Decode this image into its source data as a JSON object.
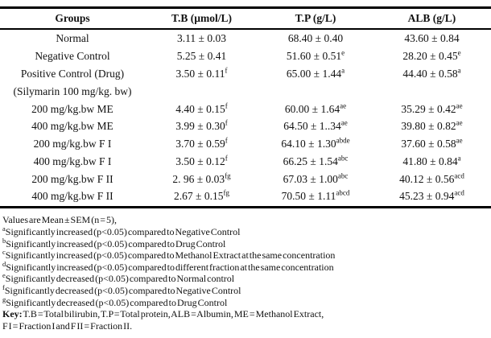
{
  "table": {
    "columns": [
      "Groups",
      "T.B (µmol/L)",
      "T.P (g/L)",
      "ALB (g/L)"
    ],
    "rows": [
      {
        "group": "Normal",
        "tb": "3.11 ± 0.03",
        "tb_sup": "",
        "tp": "68.40 ± 0.40",
        "tp_sup": "",
        "alb": "43.60 ± 0.84",
        "alb_sup": ""
      },
      {
        "group": "Negative Control",
        "tb": "5.25 ± 0.41",
        "tb_sup": "",
        "tp": "51.60 ± 0.51",
        "tp_sup": "e",
        "alb": "28.20 ± 0.45",
        "alb_sup": "e"
      },
      {
        "group": "Positive Control (Drug)",
        "tb": "3.50 ± 0.11",
        "tb_sup": "f",
        "tp": "65.00 ± 1.44",
        "tp_sup": "a",
        "alb": "44.40 ± 0.58",
        "alb_sup": "a"
      },
      {
        "group": "(Silymarin 100 mg/kg. bw)",
        "tb": "",
        "tb_sup": "",
        "tp": "",
        "tp_sup": "",
        "alb": "",
        "alb_sup": ""
      },
      {
        "group": "200 mg/kg.bw ME",
        "tb": "4.40 ± 0.15",
        "tb_sup": "f",
        "tp": "60.00 ± 1.64",
        "tp_sup": "ae",
        "alb": "35.29 ± 0.42",
        "alb_sup": "ae"
      },
      {
        "group": "400 mg/kg.bw ME",
        "tb": "3.99 ± 0.30",
        "tb_sup": "f",
        "tp": "64.50 ± 1..34",
        "tp_sup": "ae",
        "alb": "39.80 ± 0.82",
        "alb_sup": "ae"
      },
      {
        "group": "200 mg/kg.bw F I",
        "tb": "3.70 ± 0.59",
        "tb_sup": "f",
        "tp": "64.10 ± 1.30",
        "tp_sup": "abde",
        "alb": "37.60 ± 0.58",
        "alb_sup": "ae"
      },
      {
        "group": "400 mg/kg.bw F I",
        "tb": "3.50 ± 0.12",
        "tb_sup": "f",
        "tp": "66.25 ± 1.54",
        "tp_sup": "abc",
        "alb": "41.80 ± 0.84",
        "alb_sup": "a"
      },
      {
        "group": "200 mg/kg.bw F II",
        "tb": "2. 96 ± 0.03",
        "tb_sup": "fg",
        "tp": "67.03 ± 1.00",
        "tp_sup": "abc",
        "alb": "40.12 ± 0.56",
        "alb_sup": "acd"
      },
      {
        "group": "400 mg/kg.bw F II",
        "tb": "2.67 ± 0.15",
        "tb_sup": "fg",
        "tp": "70.50 ± 1.11",
        "tp_sup": "abcd",
        "alb": "45.23 ± 0.94",
        "alb_sup": "acd"
      }
    ]
  },
  "footnotes": [
    {
      "sup": "",
      "bold": "",
      "text": "Values are Mean ± SEM (n = 5),"
    },
    {
      "sup": "a",
      "bold": "",
      "text": "Significantly increased (p<0.05) compared to Negative Control"
    },
    {
      "sup": "b",
      "bold": "",
      "text": "Significantly increased (p<0.05) compared to Drug Control"
    },
    {
      "sup": "c",
      "bold": "",
      "text": "Significantly increased (p<0.05) compared to Methanol Extract at the same concentration"
    },
    {
      "sup": "d",
      "bold": "",
      "text": "Significantly increased (p<0.05) compared to different fraction at the same concentration"
    },
    {
      "sup": "e",
      "bold": "",
      "text": "Significantly decreased (p<0.05) compared to Normal control"
    },
    {
      "sup": "f",
      "bold": "",
      "text": "Significantly decreased (p<0.05) compared to Negative Control"
    },
    {
      "sup": "g",
      "bold": "",
      "text": "Significantly decreased (p<0.05) compared to Drug Control"
    },
    {
      "sup": "",
      "bold": "Key:",
      "text": " T.B = Total bilirubin,  T.P = Total protein, ALB = Albumin, ME = Methanol Extract,"
    },
    {
      "sup": "",
      "bold": "",
      "text": "F I = Fraction I and F II = Fraction II."
    }
  ]
}
